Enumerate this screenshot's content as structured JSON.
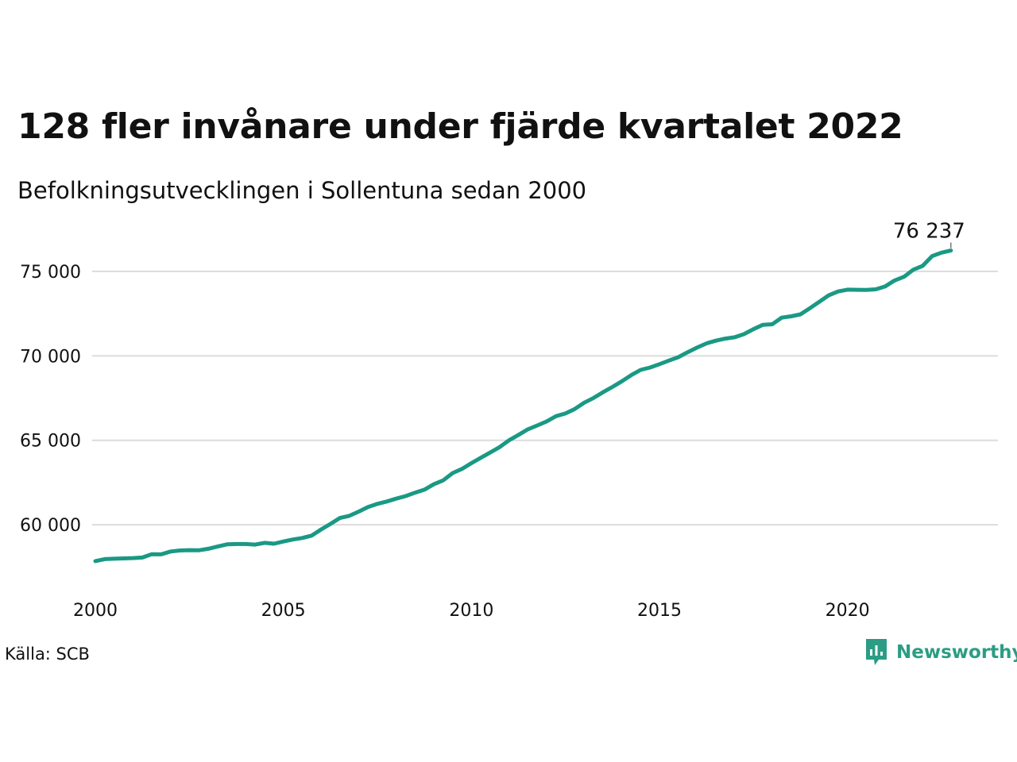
{
  "brand": {
    "name": "Newsworthy",
    "color": "#2a9d84",
    "icon": "newsworthy-logo-icon"
  },
  "source": "Källa: SCB",
  "chart_data": {
    "type": "line",
    "title": "128 fler invånare under fjärde kvartalet 2022",
    "subtitle": "Befolkningsutvecklingen i Sollentuna sedan 2000",
    "xlabel": "",
    "ylabel": "",
    "xlim": [
      2000,
      2024
    ],
    "ylim": [
      57000,
      76500
    ],
    "x_ticks": [
      {
        "value": 2000,
        "label": "2000"
      },
      {
        "value": 2005,
        "label": "2005"
      },
      {
        "value": 2010,
        "label": "2010"
      },
      {
        "value": 2015,
        "label": "2015"
      },
      {
        "value": 2020,
        "label": "2020"
      }
    ],
    "y_ticks": [
      {
        "value": 60000,
        "label": "60 000"
      },
      {
        "value": 65000,
        "label": "65 000"
      },
      {
        "value": 70000,
        "label": "70 000"
      },
      {
        "value": 75000,
        "label": "75 000"
      }
    ],
    "grid": "horizontal",
    "line_color": "#1a9984",
    "end_label": "76 237",
    "series": [
      {
        "x": [
          2000.0,
          2000.25,
          2000.5,
          2000.75,
          2001.0,
          2001.25,
          2001.5,
          2001.75,
          2002.0,
          2002.25,
          2002.5,
          2002.75,
          2003.0,
          2003.25,
          2003.5,
          2003.75,
          2004.0,
          2004.25,
          2004.5,
          2004.75,
          2005.0,
          2005.25,
          2005.5,
          2005.75,
          2006.0,
          2006.25,
          2006.5,
          2006.75,
          2007.0,
          2007.25,
          2007.5,
          2007.75,
          2008.0,
          2008.25,
          2008.5,
          2008.75,
          2009.0,
          2009.25,
          2009.5,
          2009.75,
          2010.0,
          2010.25,
          2010.5,
          2010.75,
          2011.0,
          2011.25,
          2011.5,
          2011.75,
          2012.0,
          2012.25,
          2012.5,
          2012.75,
          2013.0,
          2013.25,
          2013.5,
          2013.75,
          2014.0,
          2014.25,
          2014.5,
          2014.75,
          2015.0,
          2015.25,
          2015.5,
          2015.75,
          2016.0,
          2016.25,
          2016.5,
          2016.75,
          2017.0,
          2017.25,
          2017.5,
          2017.75,
          2018.0,
          2018.25,
          2018.5,
          2018.75,
          2019.0,
          2019.25,
          2019.5,
          2019.75,
          2020.0,
          2020.25,
          2020.5,
          2020.75,
          2021.0,
          2021.25,
          2021.5,
          2021.75,
          2022.0,
          2022.25,
          2022.5,
          2022.75
        ],
        "values": [
          57850,
          57970,
          57990,
          58010,
          58030,
          58060,
          58260,
          58250,
          58420,
          58480,
          58500,
          58490,
          58580,
          58710,
          58840,
          58860,
          58860,
          58830,
          58930,
          58880,
          59010,
          59130,
          59220,
          59360,
          59720,
          60050,
          60400,
          60530,
          60780,
          61050,
          61240,
          61380,
          61550,
          61700,
          61900,
          62080,
          62400,
          62630,
          63060,
          63310,
          63650,
          63970,
          64280,
          64600,
          65000,
          65320,
          65650,
          65880,
          66120,
          66430,
          66590,
          66860,
          67230,
          67510,
          67850,
          68160,
          68500,
          68860,
          69170,
          69310,
          69510,
          69720,
          69920,
          70220,
          70490,
          70740,
          70900,
          71020,
          71100,
          71290,
          71580,
          71840,
          71870,
          72260,
          72340,
          72460,
          72820,
          73200,
          73580,
          73810,
          73920,
          73910,
          73900,
          73940,
          74110,
          74460,
          74680,
          75100,
          75330,
          75910,
          76110,
          76237
        ]
      }
    ]
  }
}
